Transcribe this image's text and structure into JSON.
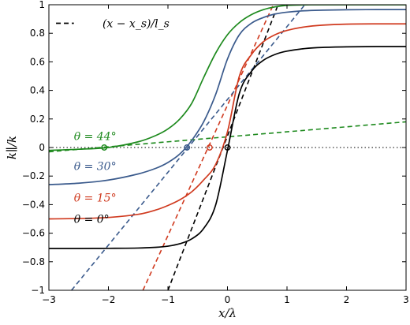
{
  "chart_data": {
    "type": "line",
    "xlabel": "x/λ",
    "ylabel": "k∥/k",
    "xlim": [
      -3,
      3
    ],
    "ylim": [
      -1,
      1
    ],
    "xticks": [
      -3,
      -2,
      -1,
      0,
      1,
      2,
      3
    ],
    "yticks": [
      -1,
      -0.8,
      -0.6,
      -0.4,
      -0.2,
      0,
      0.2,
      0.4,
      0.6,
      0.8,
      1
    ],
    "xtick_labels": [
      "−3",
      "−2",
      "−1",
      "0",
      "1",
      "2",
      "3"
    ],
    "ytick_labels": [
      "−1",
      "−0.8",
      "−0.6",
      "−0.4",
      "−0.2",
      "0",
      "0.2",
      "0.4",
      "0.6",
      "0.8",
      "1"
    ],
    "grid": false,
    "legend": {
      "placement": "top-left",
      "entries": [
        {
          "label": "(x − x_s)/l_s",
          "style": "dashed",
          "color": "#000000"
        }
      ]
    },
    "reference_line": {
      "y": 0,
      "style": "dotted"
    },
    "series": [
      {
        "label": "θ = 0°",
        "color": "#000000",
        "solid": {
          "x": [
            -3,
            -2.5,
            -2,
            -1.5,
            -1.2,
            -1,
            -0.8,
            -0.6,
            -0.4,
            -0.2,
            0,
            0.2,
            0.4,
            0.6,
            0.8,
            1,
            1.3,
            1.6,
            2,
            2.5,
            3
          ],
          "y": [
            -0.707,
            -0.707,
            -0.706,
            -0.704,
            -0.699,
            -0.691,
            -0.674,
            -0.64,
            -0.567,
            -0.405,
            -0.02,
            0.38,
            0.532,
            0.61,
            0.652,
            0.675,
            0.693,
            0.701,
            0.705,
            0.707,
            0.707
          ]
        },
        "dashed": {
          "x": [
            -1,
            0.85
          ],
          "y": [
            -1,
            1
          ]
        },
        "crossing_x": 0
      },
      {
        "label": "θ = 15°",
        "color": "#d03a1f",
        "solid": {
          "x": [
            -3,
            -2.5,
            -2,
            -1.5,
            -1.2,
            -1,
            -0.8,
            -0.6,
            -0.4,
            -0.2,
            0,
            0.2,
            0.4,
            0.6,
            0.8,
            1,
            1.3,
            1.6,
            2,
            2.5,
            3
          ],
          "y": [
            -0.5,
            -0.497,
            -0.49,
            -0.468,
            -0.437,
            -0.406,
            -0.366,
            -0.31,
            -0.227,
            -0.12,
            0.11,
            0.5,
            0.65,
            0.74,
            0.79,
            0.82,
            0.845,
            0.857,
            0.864,
            0.866,
            0.866
          ]
        },
        "dashed": {
          "x": [
            -1.42,
            0.77
          ],
          "y": [
            -1,
            1
          ]
        },
        "crossing_x": -0.3
      },
      {
        "label": "θ = 30°",
        "color": "#3a5a8c",
        "solid": {
          "x": [
            -3,
            -2.5,
            -2,
            -1.5,
            -1.2,
            -1,
            -0.8,
            -0.6,
            -0.4,
            -0.2,
            0,
            0.2,
            0.4,
            0.6,
            0.8,
            1,
            1.3,
            1.6,
            2,
            2.5,
            3
          ],
          "y": [
            -0.26,
            -0.25,
            -0.228,
            -0.185,
            -0.145,
            -0.105,
            -0.045,
            0.05,
            0.18,
            0.37,
            0.62,
            0.79,
            0.87,
            0.91,
            0.935,
            0.948,
            0.958,
            0.962,
            0.965,
            0.966,
            0.966
          ]
        },
        "dashed": {
          "x": [
            -2.62,
            1.3
          ],
          "y": [
            -1,
            1
          ]
        },
        "crossing_x": -0.68
      },
      {
        "label": "θ = 44°",
        "color": "#1e8a1e",
        "solid": {
          "x": [
            -3,
            -2.5,
            -2,
            -1.5,
            -1.2,
            -1,
            -0.8,
            -0.6,
            -0.4,
            -0.2,
            0,
            0.2,
            0.4,
            0.6,
            0.8,
            1,
            1.3,
            1.6,
            2,
            2.5,
            3
          ],
          "y": [
            -0.02,
            -0.012,
            0,
            0.04,
            0.085,
            0.13,
            0.2,
            0.31,
            0.49,
            0.66,
            0.79,
            0.875,
            0.93,
            0.965,
            0.985,
            0.996,
            0.999,
            1,
            1,
            1,
            1
          ]
        },
        "dashed": {
          "x": [
            -3,
            3
          ],
          "y": [
            -0.03,
            0.18
          ]
        },
        "crossing_x": -2.07
      }
    ]
  }
}
